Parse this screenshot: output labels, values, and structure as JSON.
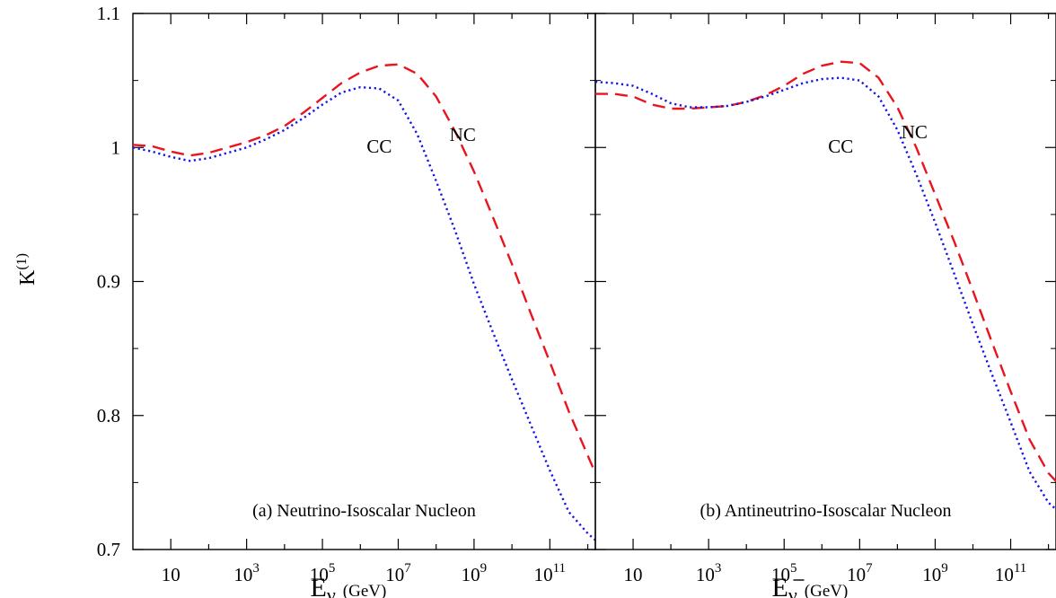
{
  "chart_data": {
    "type": "line",
    "ylabel": "K",
    "ylabel_superscript": "(1)",
    "ylim": [
      0.7,
      1.1
    ],
    "yticks": [
      {
        "value": 0.7,
        "label": "0.7"
      },
      {
        "value": 0.8,
        "label": "0.8"
      },
      {
        "value": 0.9,
        "label": "0.9"
      },
      {
        "value": 1.0,
        "label": "1"
      },
      {
        "value": 1.1,
        "label": "1.1"
      }
    ],
    "xscale": "log",
    "xlim_log10": [
      0,
      12.2
    ],
    "xticks": [
      {
        "exp": 1,
        "base": "10",
        "sup": ""
      },
      {
        "exp": 3,
        "base": "10",
        "sup": "3"
      },
      {
        "exp": 5,
        "base": "10",
        "sup": "5"
      },
      {
        "exp": 7,
        "base": "10",
        "sup": "7"
      },
      {
        "exp": 9,
        "base": "10",
        "sup": "9"
      },
      {
        "exp": 11,
        "base": "10",
        "sup": "11"
      }
    ],
    "panels": [
      {
        "caption": "(a) Neutrino-Isoscalar Nucleon",
        "xlabel": "E",
        "xlabel_sub": "ν",
        "xlabel_bar": false,
        "xunit": "(GeV)",
        "series": [
          {
            "name": "NC",
            "color": "#e8141e",
            "dash": "dashed",
            "log10_x": [
              0,
              0.5,
              1,
              1.5,
              2,
              2.5,
              3,
              3.5,
              4,
              4.5,
              5,
              5.5,
              6,
              6.5,
              7,
              7.5,
              8,
              8.5,
              9,
              9.5,
              10,
              10.5,
              11,
              11.5,
              12,
              12.2
            ],
            "y": [
              1.002,
              1.001,
              0.997,
              0.994,
              0.996,
              1.0,
              1.004,
              1.009,
              1.016,
              1.026,
              1.037,
              1.048,
              1.056,
              1.061,
              1.062,
              1.055,
              1.038,
              1.012,
              0.982,
              0.948,
              0.913,
              0.876,
              0.84,
              0.803,
              0.77,
              0.757
            ],
            "label_pos": {
              "log10_x": 8.7,
              "y": 1.005
            }
          },
          {
            "name": "CC",
            "color": "#1414e6",
            "dash": "dotted",
            "log10_x": [
              0,
              0.5,
              1,
              1.5,
              2,
              2.5,
              3,
              3.5,
              4,
              4.5,
              5,
              5.5,
              6,
              6.5,
              7,
              7.5,
              8,
              8.5,
              9,
              9.5,
              10,
              10.5,
              11,
              11.5,
              12,
              12.2
            ],
            "y": [
              1.0,
              0.997,
              0.993,
              0.99,
              0.992,
              0.996,
              1.0,
              1.006,
              1.013,
              1.022,
              1.032,
              1.041,
              1.045,
              1.044,
              1.035,
              1.01,
              0.975,
              0.938,
              0.898,
              0.862,
              0.827,
              0.793,
              0.759,
              0.728,
              0.712,
              0.707
            ],
            "label_pos": {
              "log10_x": 6.5,
              "y": 0.996
            }
          }
        ]
      },
      {
        "caption": "(b) Antineutrino-Isoscalar Nucleon",
        "xlabel": "E",
        "xlabel_sub": "ν",
        "xlabel_bar": true,
        "xunit": "(GeV)",
        "series": [
          {
            "name": "NC",
            "color": "#e8141e",
            "dash": "dashed",
            "log10_x": [
              0,
              0.5,
              1,
              1.5,
              2,
              2.5,
              3,
              3.5,
              4,
              4.5,
              5,
              5.5,
              6,
              6.5,
              7,
              7.5,
              8,
              8.5,
              9,
              9.5,
              10,
              10.5,
              11,
              11.5,
              12,
              12.2
            ],
            "y": [
              1.04,
              1.04,
              1.038,
              1.032,
              1.029,
              1.029,
              1.03,
              1.031,
              1.034,
              1.039,
              1.046,
              1.055,
              1.061,
              1.064,
              1.063,
              1.052,
              1.03,
              1.0,
              0.965,
              0.93,
              0.893,
              0.855,
              0.818,
              0.782,
              0.757,
              0.751
            ],
            "label_pos": {
              "log10_x": 8.45,
              "y": 1.007
            }
          },
          {
            "name": "CC",
            "color": "#1414e6",
            "dash": "dotted",
            "log10_x": [
              0,
              0.5,
              1,
              1.5,
              2,
              2.5,
              3,
              3.5,
              4,
              4.5,
              5,
              5.5,
              6,
              6.5,
              7,
              7.5,
              8,
              8.5,
              9,
              9.5,
              10,
              10.5,
              11,
              11.5,
              12,
              12.2
            ],
            "y": [
              1.049,
              1.048,
              1.046,
              1.04,
              1.033,
              1.03,
              1.03,
              1.031,
              1.034,
              1.038,
              1.043,
              1.048,
              1.051,
              1.052,
              1.05,
              1.038,
              1.013,
              0.98,
              0.944,
              0.906,
              0.868,
              0.831,
              0.795,
              0.758,
              0.735,
              0.73
            ],
            "label_pos": {
              "log10_x": 6.5,
              "y": 0.996
            }
          }
        ]
      }
    ],
    "grid": false,
    "legend": "none"
  }
}
